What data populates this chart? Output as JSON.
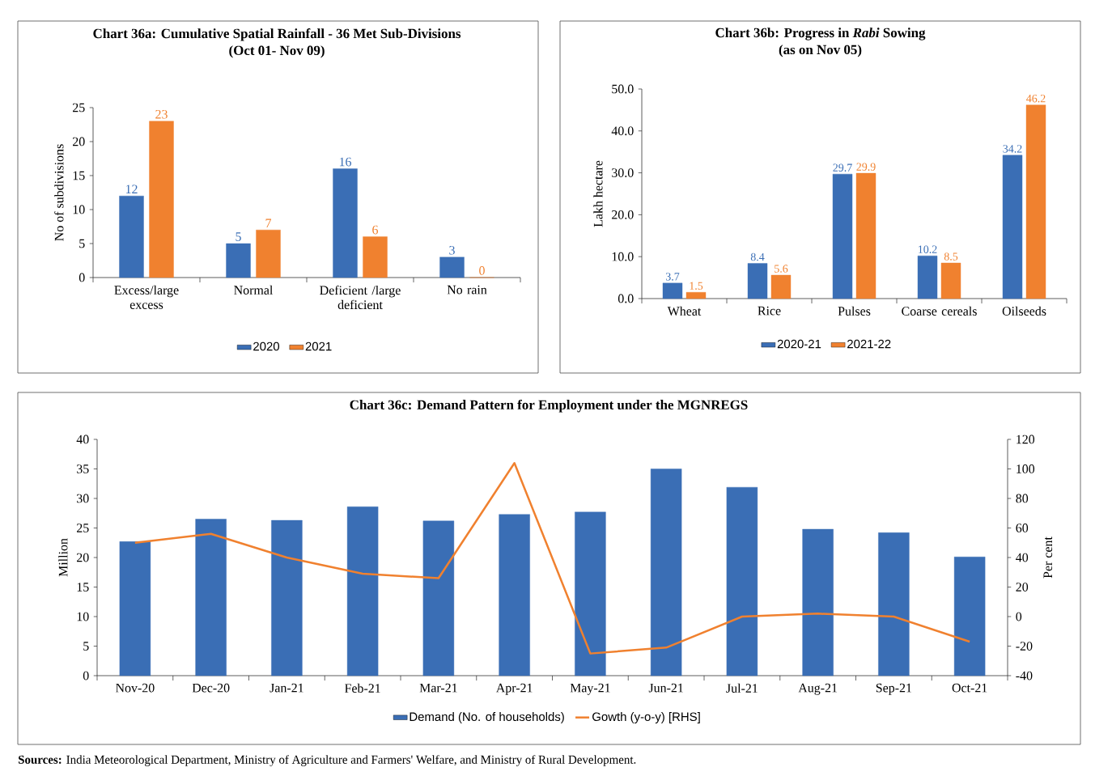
{
  "chart_data": [
    {
      "type": "bar",
      "title": "Chart 36a: Cumulative Spatial Rainfall - 36 Met Sub-Divisions",
      "subtitle": "(Oct 01- Nov 09)",
      "ylabel": "No of subdivisions",
      "categories": [
        "Excess/large excess",
        "Normal",
        "Deficient /large deficient",
        "No rain"
      ],
      "series": [
        {
          "name": "2020",
          "color": "#3a6eb5",
          "values": [
            12,
            5,
            16,
            3
          ]
        },
        {
          "name": "2021",
          "color": "#f0812f",
          "values": [
            23,
            7,
            6,
            0
          ]
        }
      ],
      "ylim": [
        0,
        25
      ],
      "yticks": [
        0,
        5,
        10,
        15,
        20,
        25
      ],
      "data_labels": true,
      "legend": "bottom"
    },
    {
      "type": "bar",
      "title": "Chart 36b: Progress in *Rabi* Sowing",
      "subtitle": "(as on Nov 05)",
      "ylabel": "Lakh hectare",
      "categories": [
        "Wheat",
        "Rice",
        "Pulses",
        "Coarse cereals",
        "Oilseeds"
      ],
      "series": [
        {
          "name": "2020-21",
          "color": "#3a6eb5",
          "values": [
            3.7,
            8.4,
            29.7,
            10.2,
            34.2
          ]
        },
        {
          "name": "2021-22",
          "color": "#f0812f",
          "values": [
            1.5,
            5.6,
            29.9,
            8.5,
            46.2
          ]
        }
      ],
      "ylim": [
        0,
        50
      ],
      "yticks": [
        {
          "value": 0,
          "label": "0.0"
        },
        {
          "value": 10,
          "label": "10.0"
        },
        {
          "value": 20,
          "label": "20.0"
        },
        {
          "value": 30,
          "label": "30.0"
        },
        {
          "value": 40,
          "label": "40.0"
        },
        {
          "value": 50,
          "label": "50.0"
        }
      ],
      "data_labels": true,
      "legend": "bottom"
    },
    {
      "type": "bar",
      "title": "Chart 36c: Demand Pattern for Employment under the MGNREGS",
      "ylabel": "Million",
      "y2label": "Per cent",
      "categories": [
        "Nov-20",
        "Dec-20",
        "Jan-21",
        "Feb-21",
        "Mar-21",
        "Apr-21",
        "May-21",
        "Jun-21",
        "Jul-21",
        "Aug-21",
        "Sep-21",
        "Oct-21"
      ],
      "series": [
        {
          "name": "Demand (No. of households)",
          "color": "#3a6eb5",
          "values": [
            22.7,
            26.5,
            26.3,
            28.6,
            26.2,
            27.3,
            27.7,
            35.0,
            31.9,
            24.8,
            24.2,
            20.1
          ]
        },
        {
          "name": "Gowth (y-o-y) [RHS]",
          "type": "line",
          "axis": "y2",
          "color": "#f0812f",
          "values": [
            50,
            56,
            40,
            29,
            26,
            104,
            -25,
            -21,
            0,
            2,
            0,
            -17
          ]
        }
      ],
      "ylim": [
        0,
        40
      ],
      "yticks": [
        0,
        5,
        10,
        15,
        20,
        25,
        30,
        35,
        40
      ],
      "y2lim": [
        -40,
        120
      ],
      "y2ticks": [
        -40,
        -20,
        0,
        20,
        40,
        60,
        80,
        100,
        120
      ],
      "legend": "bottom",
      "annotations": [
        "**Sources:** India Meteorological Department, Ministry of Agriculture and Farmers' Welfare, and Ministry of Rural Development."
      ]
    }
  ]
}
